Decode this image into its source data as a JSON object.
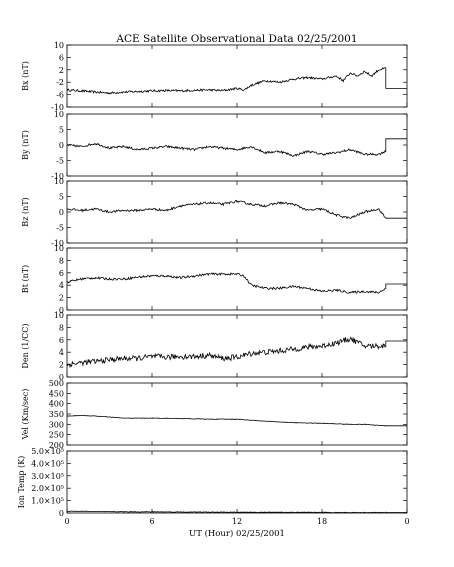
{
  "chart_data": {
    "type": "line",
    "title": "ACE Satellite Observational Data   02/25/2001",
    "xlabel": "UT (Hour)   02/25/2001",
    "x_ticks": [
      "0",
      "6",
      "12",
      "18",
      "0"
    ],
    "xlim": [
      0,
      24
    ],
    "grid": false,
    "panels": [
      {
        "ylabel": "Bx (nT)",
        "ylim": [
          -10,
          10
        ],
        "y_ticks": [
          "10",
          "6",
          "2",
          "-2",
          "-6",
          "-10"
        ],
        "y_tick_values": [
          10,
          6,
          2,
          -2,
          -6,
          -10
        ],
        "series": [
          {
            "x": [
              0,
              1,
              2,
              3,
              4,
              5,
              6,
              7,
              8,
              9,
              10,
              11,
              12,
              12.5,
              13,
              14,
              15,
              16,
              17,
              18,
              19,
              19.5,
              20,
              20.5,
              21,
              21.5,
              22,
              22.5,
              24
            ],
            "values": [
              -4.5,
              -4.8,
              -5.2,
              -5.5,
              -5.2,
              -5,
              -4.8,
              -4.7,
              -4.8,
              -4.6,
              -4.5,
              -4.7,
              -4,
              -4.5,
              -3,
              -1.5,
              -2,
              -1,
              -0.5,
              -1,
              0,
              -1.5,
              1,
              0,
              1.5,
              0,
              2,
              2.5,
              -4
            ]
          }
        ]
      },
      {
        "ylabel": "By (nT)",
        "ylim": [
          -10,
          10
        ],
        "y_ticks": [
          "10",
          "5",
          "0",
          "-5",
          "-10"
        ],
        "y_tick_values": [
          10,
          5,
          0,
          -5,
          -10
        ],
        "series": [
          {
            "x": [
              0,
              1,
              2,
              3,
              4,
              5,
              6,
              7,
              8,
              9,
              10,
              11,
              12,
              13,
              14,
              15,
              16,
              17,
              18,
              19,
              20,
              21,
              22,
              22.5,
              24
            ],
            "values": [
              0,
              -0.5,
              0.5,
              -1,
              -0.5,
              -1.5,
              -1,
              -0.5,
              -1,
              -1.5,
              -0.5,
              -1,
              -1.5,
              -0.5,
              -2.5,
              -2,
              -3.5,
              -2,
              -3,
              -2.5,
              -1.5,
              -3,
              -3,
              -2,
              2
            ]
          }
        ]
      },
      {
        "ylabel": "Bz (nT)",
        "ylim": [
          -10,
          10
        ],
        "y_ticks": [
          "10",
          "5",
          "0",
          "-5",
          "-10"
        ],
        "y_tick_values": [
          10,
          5,
          0,
          -5,
          -10
        ],
        "series": [
          {
            "x": [
              0,
              1,
              2,
              3,
              4,
              5,
              6,
              7,
              8,
              9,
              10,
              11,
              12,
              13,
              14,
              15,
              16,
              17,
              18,
              19,
              20,
              21,
              22,
              22.5,
              24
            ],
            "values": [
              1,
              0.5,
              1,
              0,
              0.5,
              0.5,
              1,
              0.5,
              2,
              2.5,
              3,
              2.5,
              3.5,
              2.5,
              2,
              3,
              2.5,
              0.5,
              1,
              -1,
              -2,
              0,
              1,
              -2,
              -2
            ]
          }
        ]
      },
      {
        "ylabel": "Bt (nT)",
        "ylim": [
          0,
          10
        ],
        "y_ticks": [
          "10",
          "8",
          "6",
          "4",
          "2",
          "0"
        ],
        "y_tick_values": [
          10,
          8,
          6,
          4,
          2,
          0
        ],
        "series": [
          {
            "x": [
              0,
              1,
              2,
              3,
              4,
              5,
              6,
              7,
              8,
              9,
              10,
              11,
              12,
              12.5,
              13,
              14,
              15,
              16,
              17,
              18,
              19,
              20,
              21,
              22,
              22.5,
              24
            ],
            "values": [
              4.5,
              5,
              5.2,
              5,
              5,
              5.3,
              5.5,
              5.5,
              5.2,
              5.5,
              5.8,
              5.8,
              5.8,
              5.5,
              4,
              3.5,
              3.5,
              3.8,
              3.5,
              3,
              3.2,
              2.8,
              3,
              2.8,
              3.5,
              4.2
            ]
          }
        ]
      },
      {
        "ylabel": "Den (1/CC)",
        "ylim": [
          0,
          10
        ],
        "y_ticks": [
          "10",
          "8",
          "6",
          "4",
          "2",
          "0"
        ],
        "y_tick_values": [
          10,
          8,
          6,
          4,
          2,
          0
        ],
        "series": [
          {
            "x": [
              0,
              1,
              2,
              3,
              4,
              5,
              6,
              7,
              8,
              9,
              10,
              11,
              12,
              13,
              14,
              15,
              16,
              17,
              18,
              19,
              20,
              21,
              22,
              22.5,
              24
            ],
            "values": [
              2,
              2.3,
              2.5,
              2.8,
              3,
              3,
              3.3,
              3.2,
              3.3,
              3.3,
              3.5,
              3,
              3.2,
              3.8,
              4,
              4.2,
              4.5,
              4.8,
              5,
              5.5,
              6.2,
              5,
              5,
              5,
              5.8
            ]
          }
        ]
      },
      {
        "ylabel": "Vel (Km/sec)",
        "ylim": [
          200,
          500
        ],
        "y_ticks": [
          "500",
          "450",
          "400",
          "350",
          "300",
          "250",
          "200"
        ],
        "y_tick_values": [
          500,
          450,
          400,
          350,
          300,
          250,
          200
        ],
        "series": [
          {
            "x": [
              0,
              1,
              2,
              3,
              4,
              6,
              8,
              10,
              12,
              13,
              14,
              16,
              18,
              20,
              21,
              22,
              22.5,
              24
            ],
            "values": [
              340,
              343,
              340,
              335,
              330,
              330,
              328,
              325,
              325,
              320,
              315,
              308,
              305,
              300,
              300,
              295,
              293,
              293
            ]
          }
        ]
      },
      {
        "ylabel": "Ion Temp (K)",
        "ylim": [
          0,
          500000
        ],
        "y_ticks": [
          "5.0×10⁵",
          "4.0×10⁵",
          "3.0×10⁵",
          "2.0×10⁵",
          "1.0×10⁵",
          "0"
        ],
        "y_tick_values": [
          500000,
          400000,
          300000,
          200000,
          100000,
          0
        ],
        "series": [
          {
            "x": [
              0,
              2,
              4,
              6,
              8,
              10,
              12,
              14,
              16,
              18,
              20,
              22,
              22.5,
              24
            ],
            "values": [
              15000,
              12000,
              10000,
              9000,
              8000,
              7000,
              6000,
              6000,
              5000,
              5000,
              4000,
              4000,
              4000,
              4000
            ]
          }
        ]
      }
    ]
  }
}
